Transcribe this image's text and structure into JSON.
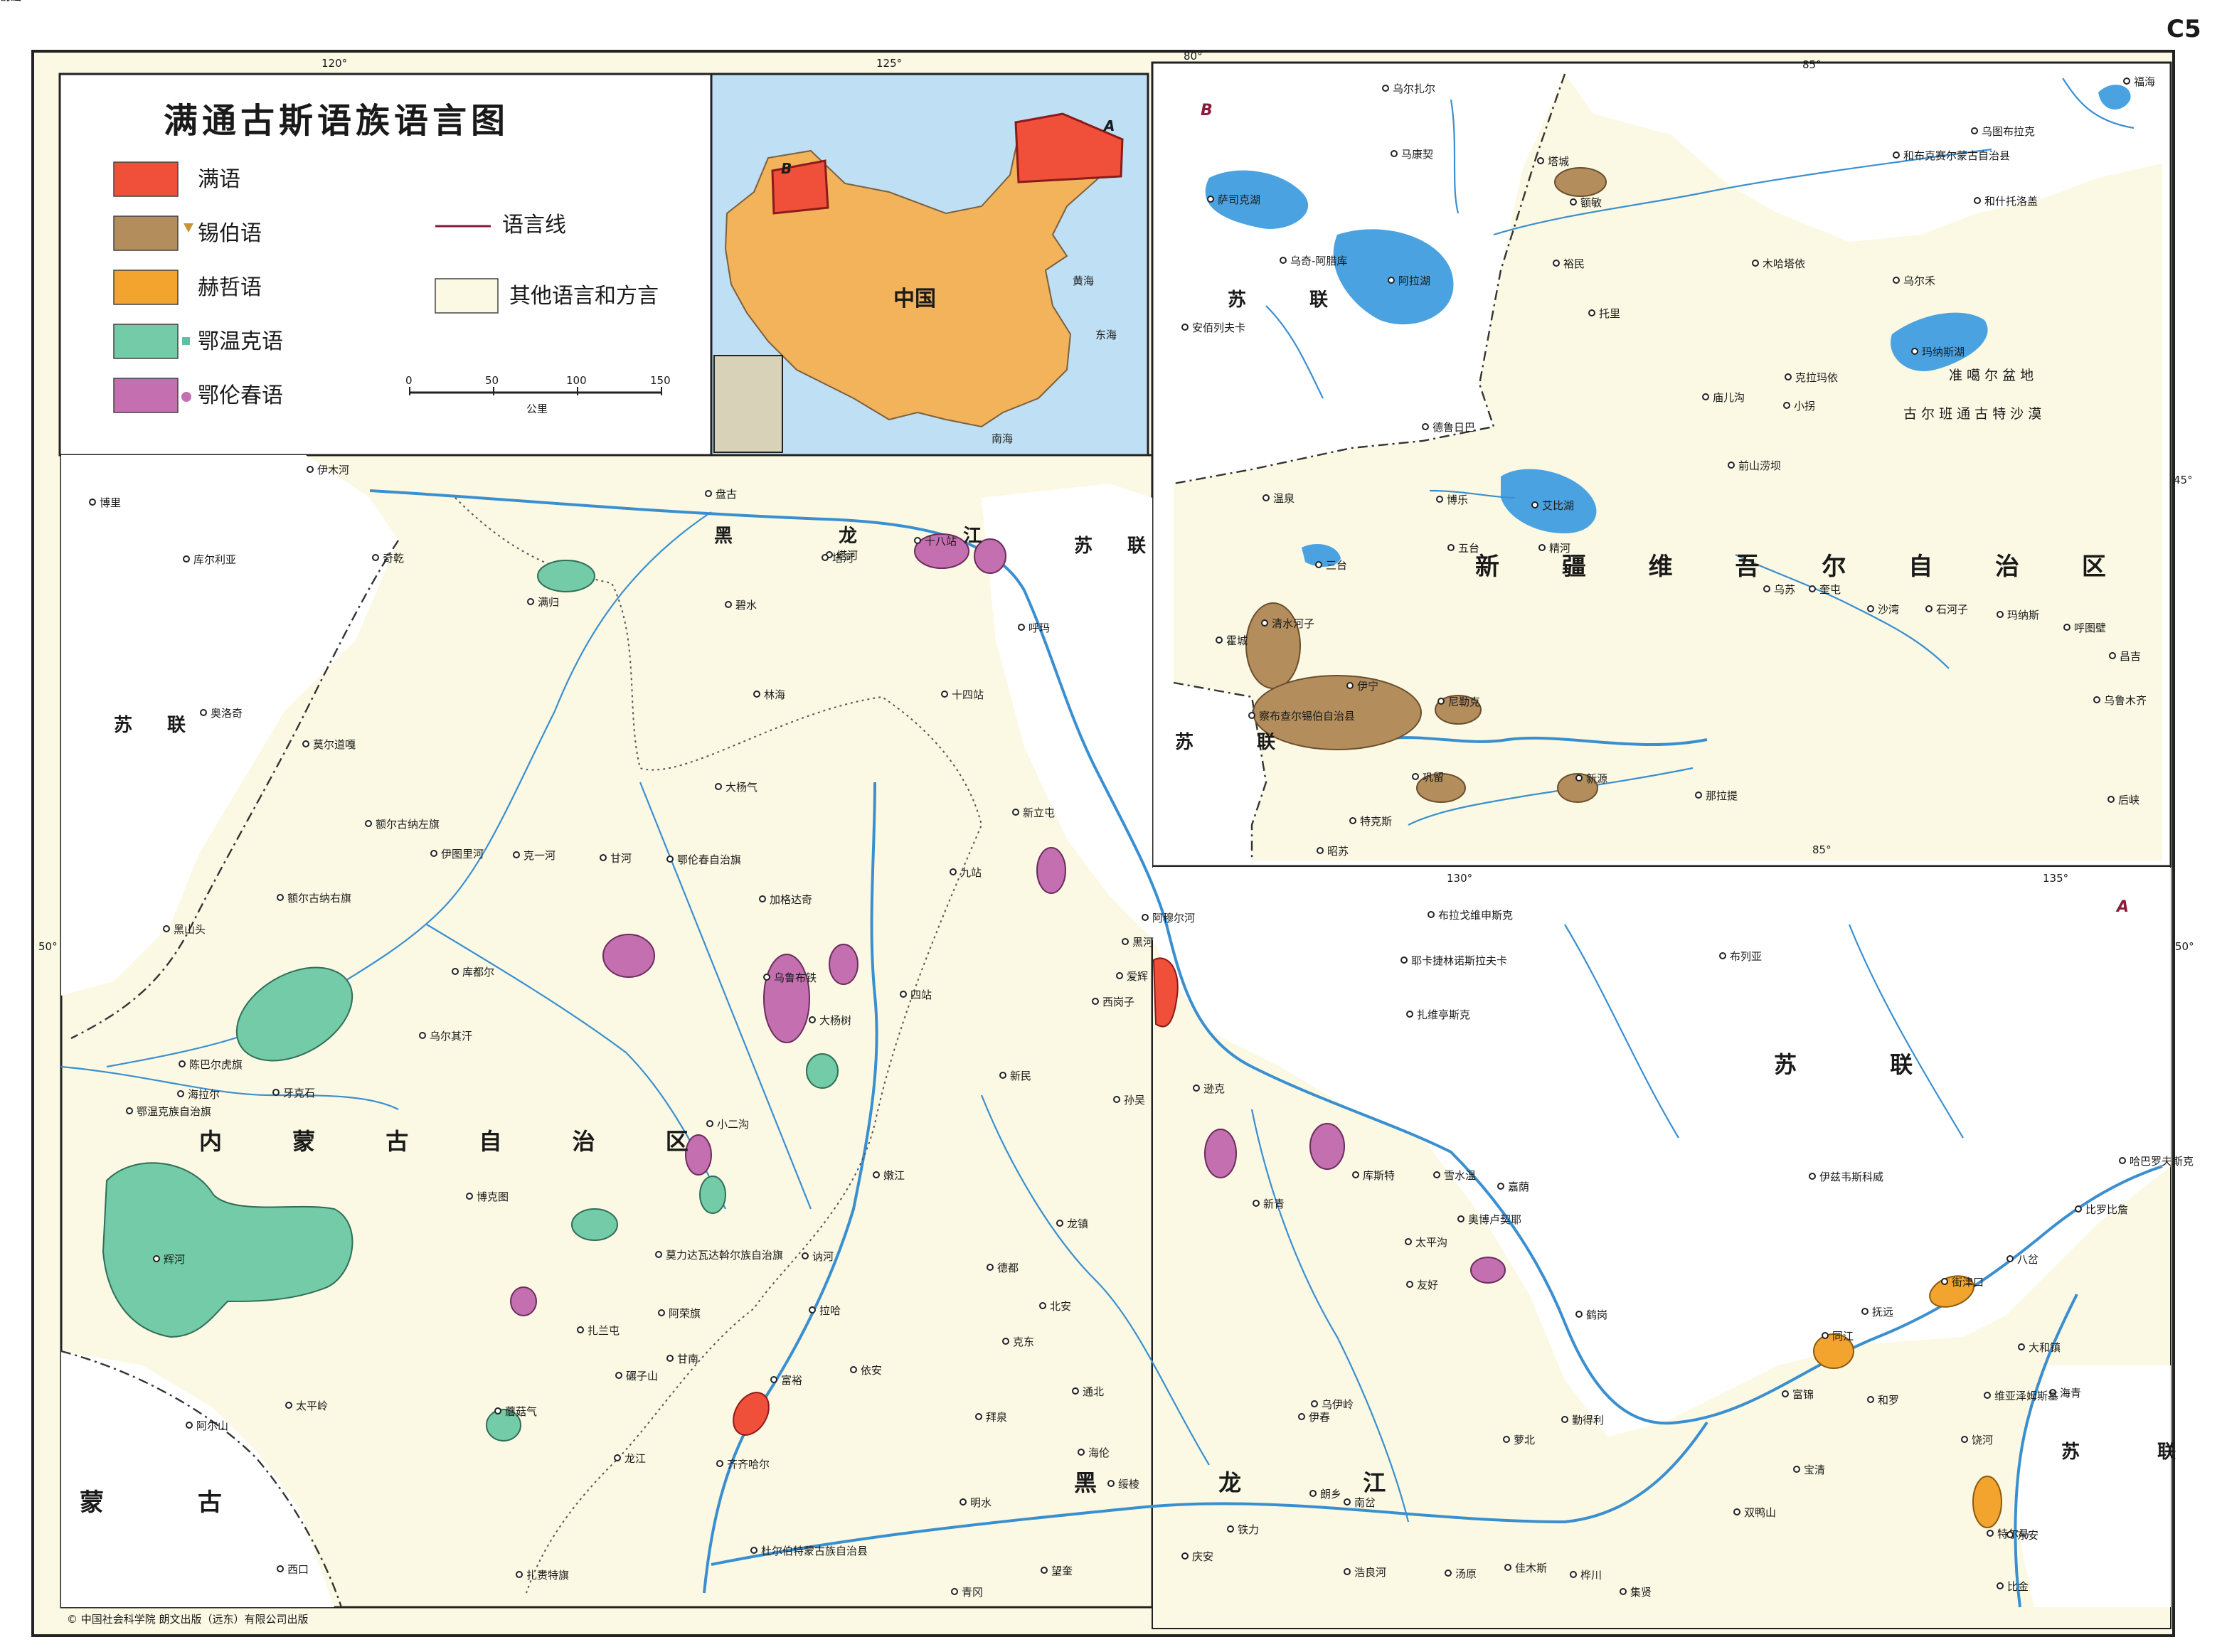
{
  "page_code": "C5",
  "legend": {
    "title": "满通古斯语族语言图",
    "items": [
      {
        "label": "满语",
        "color": "#f0503a"
      },
      {
        "label": "锡伯语",
        "color": "#b38d5c"
      },
      {
        "label": "赫哲语",
        "color": "#f3a42e"
      },
      {
        "label": "鄂温克语",
        "color": "#74cba7"
      },
      {
        "label": "鄂伦春语",
        "color": "#c46fb0"
      }
    ],
    "language_line": "语言线",
    "other": "其他语言和方言",
    "scale_ticks": [
      "0",
      "50",
      "100",
      "150"
    ],
    "scale_unit": "公里"
  },
  "inset": {
    "country": "中国",
    "sea_labels": [
      "黄海",
      "东海",
      "南海"
    ],
    "region_markers": [
      "A",
      "B"
    ]
  },
  "panel_a": {
    "marker": "A",
    "lon_labels": [
      "120°",
      "125°",
      "130°",
      "135°"
    ],
    "lat_labels": [
      "50°",
      "50°"
    ],
    "regions": [
      {
        "text": "黑 龙 江"
      },
      {
        "text": "内 蒙 古 自 治 区"
      },
      {
        "text": "黑 龙 江"
      },
      {
        "text": "苏 联"
      },
      {
        "text": "苏 联"
      },
      {
        "text": "苏 联"
      },
      {
        "text": "苏 联"
      },
      {
        "text": "蒙 古"
      }
    ],
    "places": [
      "伊木河",
      "博里",
      "库尔利亚",
      "奇乾",
      "满归",
      "奥洛奇",
      "莫尔道嘎",
      "额尔古纳左旗",
      "伊图里河",
      "克一河",
      "甘河",
      "鄂伦春自治旗",
      "加格达奇",
      "盘古",
      "塔河",
      "十八站",
      "呼玛",
      "碧水",
      "林海",
      "十四站",
      "大杨气",
      "新立屯",
      "九站",
      "黑山头",
      "额尔古纳右旗",
      "库都尔",
      "乌尔其汗",
      "陈巴尔虎旗",
      "海拉尔",
      "牙克石",
      "鄂温克族自治旗",
      "乌鲁布铁",
      "大杨树",
      "四站",
      "塔河",
      "黑河",
      "爱辉",
      "西岗子",
      "新民",
      "孙吴",
      "逊克",
      "嘉荫",
      "小二沟",
      "博克图",
      "辉河",
      "扎兰屯",
      "阿荣旗",
      "碾子山",
      "齐齐哈尔",
      "富裕",
      "依安",
      "克东",
      "北安",
      "德都",
      "龙镇",
      "嫩江",
      "讷河",
      "莫力达瓦达斡尔族自治旗",
      "拉哈",
      "甘南",
      "龙江",
      "蘑菇气",
      "阿尔山",
      "太平岭",
      "西口",
      "扎赉特旗",
      "杜尔伯特蒙古族自治县",
      "海伦",
      "绥棱",
      "通北",
      "拜泉",
      "明水",
      "青冈",
      "望奎",
      "庆安",
      "铁力",
      "伊春",
      "朗乡",
      "南岔",
      "浩良河",
      "汤原",
      "佳木斯",
      "桦川",
      "集贤",
      "双鸭山",
      "宝清",
      "富锦",
      "同江",
      "街津口",
      "八岔",
      "抚远",
      "勤得利",
      "萝北",
      "鹤岗",
      "太平沟",
      "乌伊岭",
      "友好",
      "新青",
      "库斯特",
      "雪水温",
      "奥博卢契耶",
      "伊兹韦斯科威",
      "比罗比詹",
      "哈巴罗夫斯克",
      "阿穆尔河",
      "布拉戈维申斯克",
      "耶卡捷林诺斯拉夫卡",
      "扎维亭斯克",
      "布列亚",
      "特尔马",
      "饶河",
      "东安",
      "比金",
      "大和镇",
      "海青",
      "维亚泽姆斯基",
      "和罗",
      "锦山",
      "前进"
    ]
  },
  "panel_b": {
    "marker": "B",
    "lon_labels": [
      "80°",
      "85°",
      "85°"
    ],
    "lat_labels": [
      "45°"
    ],
    "regions": [
      {
        "text": "新 疆 维 吾 尔 自 治 区"
      },
      {
        "text": "苏 联"
      },
      {
        "text": "苏 联"
      },
      {
        "text": "准 噶 尔 盆 地"
      },
      {
        "text": "古 尔 班 通 古 特 沙 漠"
      }
    ],
    "places": [
      "乌尔扎尔",
      "马康契",
      "萨司克湖",
      "乌奇-阿腊库",
      "阿拉湖",
      "安佰列夫卡",
      "塔城",
      "额敏",
      "裕民",
      "托里",
      "和布克赛尔蒙古自治县",
      "乌图布拉克",
      "和什托洛盖",
      "木哈塔依",
      "乌尔禾",
      "玛纳斯湖",
      "克拉玛依",
      "庙儿沟",
      "德鲁日巴",
      "温泉",
      "博乐",
      "艾比湖",
      "精河",
      "五台",
      "三台",
      "乌苏",
      "奎屯",
      "沙湾",
      "石河子",
      "玛纳斯",
      "呼图壁",
      "昌吉",
      "乌鲁木齐",
      "后峡",
      "霍城",
      "清水河子",
      "伊宁",
      "察布查尔锡伯自治县",
      "尼勒克",
      "巩留",
      "新源",
      "那拉提",
      "特克斯",
      "昭苏",
      "小拐",
      "前山涝坝",
      "福海"
    ]
  },
  "footer": {
    "copyright": "© 中国社会科学院   朗文出版（远东）有限公司出版"
  }
}
